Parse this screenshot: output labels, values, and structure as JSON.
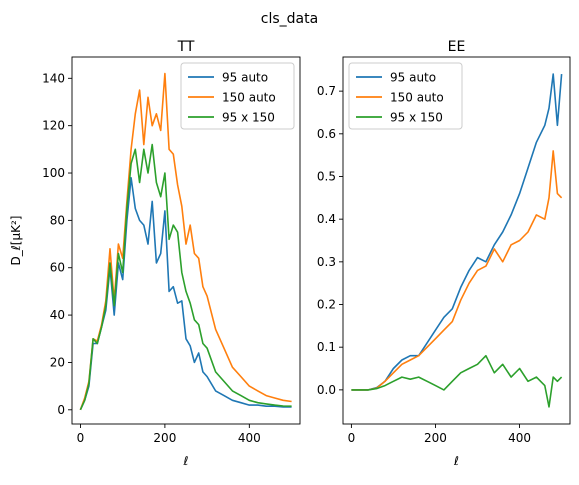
{
  "figure": {
    "suptitle": "cls_data"
  },
  "chart_data": [
    {
      "type": "line",
      "title": "TT",
      "xlabel": "ℓ",
      "ylabel": "D_ℓ[μK²]",
      "xlim": [
        -20,
        520
      ],
      "ylim": [
        -6,
        149
      ],
      "xticks": [
        0,
        200,
        400
      ],
      "yticks": [
        0,
        20,
        40,
        60,
        80,
        100,
        120,
        140
      ],
      "legend_position": "top-right",
      "series": [
        {
          "name": "95 auto",
          "color": "#1f77b4",
          "x": [
            0,
            10,
            20,
            30,
            40,
            50,
            60,
            70,
            80,
            90,
            100,
            110,
            120,
            130,
            140,
            150,
            160,
            170,
            180,
            190,
            200,
            210,
            220,
            230,
            240,
            250,
            260,
            270,
            280,
            290,
            300,
            320,
            340,
            360,
            380,
            400,
            420,
            440,
            460,
            480,
            500
          ],
          "values": [
            0,
            4,
            10,
            28,
            28,
            35,
            42,
            60,
            40,
            62,
            55,
            80,
            98,
            85,
            80,
            78,
            70,
            88,
            62,
            66,
            84,
            50,
            52,
            45,
            46,
            30,
            27,
            20,
            24,
            16,
            14,
            8,
            6,
            4,
            3,
            2,
            2,
            1.5,
            1.5,
            1.2,
            1.2
          ]
        },
        {
          "name": "150 auto",
          "color": "#ff7f0e",
          "x": [
            0,
            10,
            20,
            30,
            40,
            50,
            60,
            70,
            80,
            90,
            100,
            110,
            120,
            130,
            140,
            150,
            160,
            170,
            180,
            190,
            200,
            210,
            220,
            230,
            240,
            250,
            260,
            270,
            280,
            290,
            300,
            320,
            340,
            360,
            380,
            400,
            420,
            440,
            460,
            480,
            500
          ],
          "values": [
            0,
            5,
            12,
            30,
            29,
            36,
            46,
            68,
            46,
            70,
            64,
            88,
            110,
            125,
            135,
            112,
            132,
            120,
            125,
            118,
            142,
            110,
            108,
            95,
            86,
            70,
            78,
            66,
            64,
            52,
            48,
            34,
            26,
            18,
            14,
            10,
            8,
            6,
            5,
            4,
            3.5
          ]
        },
        {
          "name": "95 x 150",
          "color": "#2ca02c",
          "x": [
            0,
            10,
            20,
            30,
            40,
            50,
            60,
            70,
            80,
            90,
            100,
            110,
            120,
            130,
            140,
            150,
            160,
            170,
            180,
            190,
            200,
            210,
            220,
            230,
            240,
            250,
            260,
            270,
            280,
            290,
            300,
            320,
            340,
            360,
            380,
            400,
            420,
            440,
            460,
            480,
            500
          ],
          "values": [
            0,
            4,
            11,
            30,
            28,
            35,
            44,
            62,
            44,
            66,
            58,
            85,
            104,
            110,
            96,
            110,
            100,
            112,
            96,
            90,
            100,
            72,
            78,
            75,
            58,
            50,
            45,
            38,
            36,
            28,
            26,
            16,
            12,
            8,
            6,
            4,
            3,
            2.5,
            2,
            1.6,
            1.5
          ]
        }
      ]
    },
    {
      "type": "line",
      "title": "EE",
      "xlabel": "ℓ",
      "ylabel": "",
      "xlim": [
        -20,
        520
      ],
      "ylim": [
        -0.08,
        0.78
      ],
      "xticks": [
        0,
        200,
        400
      ],
      "yticks": [
        0.0,
        0.1,
        0.2,
        0.3,
        0.4,
        0.5,
        0.6,
        0.7
      ],
      "legend_position": "top-left",
      "series": [
        {
          "name": "95 auto",
          "color": "#1f77b4",
          "x": [
            0,
            20,
            40,
            60,
            80,
            100,
            120,
            140,
            160,
            180,
            200,
            220,
            240,
            260,
            280,
            300,
            320,
            340,
            360,
            380,
            400,
            420,
            440,
            460,
            470,
            480,
            490,
            500
          ],
          "values": [
            0,
            0,
            0,
            0.005,
            0.02,
            0.05,
            0.07,
            0.08,
            0.08,
            0.11,
            0.14,
            0.17,
            0.19,
            0.24,
            0.28,
            0.31,
            0.3,
            0.34,
            0.37,
            0.41,
            0.46,
            0.52,
            0.58,
            0.62,
            0.66,
            0.74,
            0.62,
            0.74
          ]
        },
        {
          "name": "150 auto",
          "color": "#ff7f0e",
          "x": [
            0,
            20,
            40,
            60,
            80,
            100,
            120,
            140,
            160,
            180,
            200,
            220,
            240,
            260,
            280,
            300,
            320,
            340,
            360,
            380,
            400,
            420,
            440,
            460,
            470,
            480,
            490,
            500
          ],
          "values": [
            0,
            0,
            0,
            0.004,
            0.02,
            0.04,
            0.06,
            0.07,
            0.08,
            0.1,
            0.12,
            0.14,
            0.16,
            0.21,
            0.25,
            0.28,
            0.29,
            0.33,
            0.3,
            0.34,
            0.35,
            0.37,
            0.41,
            0.4,
            0.45,
            0.56,
            0.46,
            0.45
          ]
        },
        {
          "name": "95 x 150",
          "color": "#2ca02c",
          "x": [
            0,
            20,
            40,
            60,
            80,
            100,
            120,
            140,
            160,
            180,
            200,
            220,
            240,
            260,
            280,
            300,
            320,
            340,
            360,
            380,
            400,
            420,
            440,
            460,
            470,
            480,
            490,
            500
          ],
          "values": [
            0,
            0,
            0,
            0.003,
            0.01,
            0.02,
            0.03,
            0.025,
            0.03,
            0.02,
            0.01,
            0.0,
            0.02,
            0.04,
            0.05,
            0.06,
            0.08,
            0.04,
            0.06,
            0.03,
            0.05,
            0.02,
            0.03,
            0.01,
            -0.04,
            0.03,
            0.02,
            0.03
          ]
        }
      ]
    }
  ]
}
